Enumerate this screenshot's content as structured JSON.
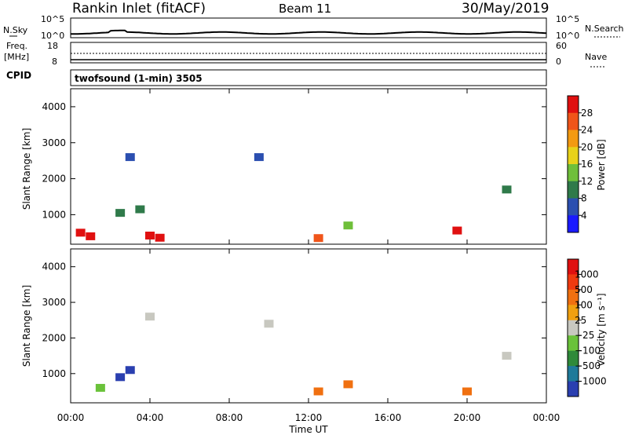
{
  "header": {
    "station": "Rankin Inlet (fitACF)",
    "beam": "Beam 11",
    "date": "30/May/2019"
  },
  "nsky_panel": {
    "left_label": "N.Sky",
    "right_label": "N.Search",
    "ticks_left": [
      "10^5",
      "10^0"
    ],
    "ticks_right": [
      "10^5",
      "10^0"
    ]
  },
  "freq_panel": {
    "left_label": "Freq.",
    "unit": "[MHz]",
    "cpid_label": "CPID",
    "ticks_left": [
      "18",
      "8"
    ],
    "ticks_right": [
      "60",
      "0"
    ],
    "right_label": "Nave"
  },
  "cpid_strip": {
    "text": "twofsound (1-min) 3505"
  },
  "colors": {
    "power": [
      "#1a1aff",
      "#2b4fb0",
      "#2f7a4a",
      "#6fbf3a",
      "#e8d21a",
      "#f39a12",
      "#f0551a",
      "#e01010"
    ],
    "velocity": [
      "#2a3fb0",
      "#1f7a9a",
      "#2f8a3a",
      "#6ac23a",
      "#c8c8c0",
      "#f0a010",
      "#f07010",
      "#f03a10",
      "#e01010"
    ]
  },
  "chart_data": [
    {
      "type": "heatmap",
      "title": "",
      "ylabel": "Slant Range [km]",
      "ylim": [
        180,
        4500
      ],
      "y_ticks": [
        "1000",
        "2000",
        "3000",
        "4000"
      ],
      "colorbar": {
        "label": "Power [dB]",
        "ticks": [
          "4",
          "8",
          "12",
          "16",
          "20",
          "24",
          "28"
        ],
        "range": [
          0,
          32
        ]
      },
      "cells": [
        {
          "t": 0.5,
          "r": 500,
          "c": 7
        },
        {
          "t": 1.0,
          "r": 400,
          "c": 7
        },
        {
          "t": 4.0,
          "r": 420,
          "c": 7
        },
        {
          "t": 4.5,
          "r": 360,
          "c": 7
        },
        {
          "t": 19.5,
          "r": 560,
          "c": 7
        },
        {
          "t": 12.5,
          "r": 350,
          "c": 6
        },
        {
          "t": 2.5,
          "r": 1050,
          "c": 2
        },
        {
          "t": 3.5,
          "r": 1150,
          "c": 2
        },
        {
          "t": 14.0,
          "r": 700,
          "c": 3
        },
        {
          "t": 9.5,
          "r": 2600,
          "c": 1
        },
        {
          "t": 3.0,
          "r": 2600,
          "c": 1
        },
        {
          "t": 22.0,
          "r": 1700,
          "c": 2
        }
      ]
    },
    {
      "type": "heatmap",
      "title": "",
      "ylabel": "Slant Range [km]",
      "xlabel": "Time UT",
      "x_ticks": [
        "00:00",
        "04:00",
        "08:00",
        "12:00",
        "16:00",
        "20:00",
        "00:00"
      ],
      "ylim": [
        180,
        4500
      ],
      "y_ticks": [
        "1000",
        "2000",
        "3000",
        "4000"
      ],
      "colorbar": {
        "label": "Velocity [m s⁻¹]",
        "ticks": [
          "1000",
          "500",
          "100",
          "25",
          "−25",
          "−100",
          "−500",
          "−1000"
        ]
      },
      "cells": [
        {
          "t": 2.5,
          "r": 900,
          "c": 0
        },
        {
          "t": 3.0,
          "r": 1100,
          "c": 0
        },
        {
          "t": 1.5,
          "r": 600,
          "c": 3
        },
        {
          "t": 12.5,
          "r": 500,
          "c": 6
        },
        {
          "t": 14.0,
          "r": 700,
          "c": 6
        },
        {
          "t": 20.0,
          "r": 500,
          "c": 6
        },
        {
          "t": 4.0,
          "r": 2600,
          "c": 4
        },
        {
          "t": 10.0,
          "r": 2400,
          "c": 4
        },
        {
          "t": 22.0,
          "r": 1500,
          "c": 4
        }
      ]
    }
  ]
}
